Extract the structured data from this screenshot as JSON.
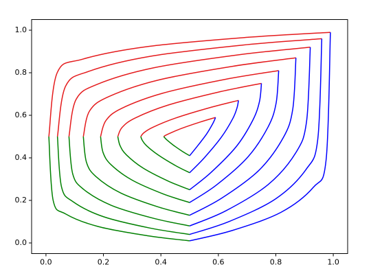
{
  "chart_data": {
    "type": "line",
    "xlim": [
      -0.05,
      1.05
    ],
    "ylim": [
      -0.05,
      1.05
    ],
    "xticks": [
      {
        "value": 0,
        "label": "0.0"
      },
      0.2,
      0.4,
      0.6,
      0.8,
      {
        "value": 1,
        "label": "1.0"
      }
    ],
    "yticks": [
      {
        "value": 0,
        "label": "0.0"
      },
      0.2,
      0.4,
      0.6,
      0.8,
      {
        "value": 1,
        "label": "1.0"
      }
    ],
    "grid": false,
    "series": [
      {
        "color": "#e41a1c",
        "x": [
          0.41,
          0.415,
          0.432,
          0.473,
          0.536,
          0.59
        ],
        "values": [
          0.5,
          0.505,
          0.516,
          0.539,
          0.568,
          0.59
        ]
      },
      {
        "color": "#008000",
        "x": [
          0.41,
          0.413,
          0.421,
          0.442,
          0.473,
          0.5
        ],
        "values": [
          0.5,
          0.495,
          0.484,
          0.461,
          0.432,
          0.41
        ]
      },
      {
        "color": "#0000ff",
        "x": [
          0.59,
          0.587,
          0.579,
          0.559,
          0.527,
          0.5
        ],
        "values": [
          0.59,
          0.579,
          0.557,
          0.512,
          0.455,
          0.41
        ]
      },
      {
        "color": "#e41a1c",
        "x": [
          0.33,
          0.34,
          0.371,
          0.449,
          0.568,
          0.67
        ],
        "values": [
          0.5,
          0.517,
          0.543,
          0.586,
          0.635,
          0.67
        ]
      },
      {
        "color": "#008000",
        "x": [
          0.33,
          0.335,
          0.35,
          0.39,
          0.449,
          0.5
        ],
        "values": [
          0.5,
          0.483,
          0.457,
          0.414,
          0.365,
          0.33
        ]
      },
      {
        "color": "#0000ff",
        "x": [
          0.67,
          0.665,
          0.65,
          0.611,
          0.551,
          0.5
        ],
        "values": [
          0.67,
          0.635,
          0.584,
          0.498,
          0.4,
          0.33
        ]
      },
      {
        "color": "#e41a1c",
        "x": [
          0.25,
          0.265,
          0.31,
          0.425,
          0.6,
          0.75
        ],
        "values": [
          0.5,
          0.543,
          0.587,
          0.648,
          0.709,
          0.75
        ]
      },
      {
        "color": "#008000",
        "x": [
          0.25,
          0.258,
          0.28,
          0.338,
          0.425,
          0.5
        ],
        "values": [
          0.5,
          0.457,
          0.414,
          0.352,
          0.291,
          0.25
        ]
      },
      {
        "color": "#0000ff",
        "x": [
          0.75,
          0.743,
          0.72,
          0.663,
          0.575,
          0.5
        ],
        "values": [
          0.75,
          0.664,
          0.577,
          0.454,
          0.332,
          0.25
        ]
      },
      {
        "color": "#e41a1c",
        "x": [
          0.19,
          0.209,
          0.264,
          0.407,
          0.624,
          0.81
        ],
        "values": [
          0.5,
          0.576,
          0.633,
          0.704,
          0.769,
          0.81
        ]
      },
      {
        "color": "#008000",
        "x": [
          0.19,
          0.199,
          0.227,
          0.299,
          0.407,
          0.5
        ],
        "values": [
          0.5,
          0.424,
          0.367,
          0.296,
          0.231,
          0.19
        ]
      },
      {
        "color": "#0000ff",
        "x": [
          0.81,
          0.801,
          0.773,
          0.702,
          0.593,
          0.5
        ],
        "values": [
          0.81,
          0.657,
          0.545,
          0.403,
          0.272,
          0.19
        ]
      },
      {
        "color": "#e41a1c",
        "x": [
          0.13,
          0.152,
          0.219,
          0.389,
          0.648,
          0.87
        ],
        "values": [
          0.5,
          0.621,
          0.688,
          0.765,
          0.83,
          0.87
        ]
      },
      {
        "color": "#008000",
        "x": [
          0.13,
          0.141,
          0.174,
          0.26,
          0.389,
          0.5
        ],
        "values": [
          0.5,
          0.379,
          0.312,
          0.235,
          0.17,
          0.13
        ]
      },
      {
        "color": "#0000ff",
        "x": [
          0.87,
          0.859,
          0.826,
          0.741,
          0.611,
          0.5
        ],
        "values": [
          0.87,
          0.629,
          0.495,
          0.341,
          0.21,
          0.13
        ]
      },
      {
        "color": "#e41a1c",
        "x": [
          0.08,
          0.105,
          0.181,
          0.374,
          0.668,
          0.92
        ],
        "values": [
          0.5,
          0.675,
          0.747,
          0.823,
          0.884,
          0.92
        ]
      },
      {
        "color": "#008000",
        "x": [
          0.08,
          0.093,
          0.13,
          0.227,
          0.374,
          0.5
        ],
        "values": [
          0.5,
          0.325,
          0.253,
          0.177,
          0.116,
          0.08
        ]
      },
      {
        "color": "#0000ff",
        "x": [
          0.92,
          0.907,
          0.87,
          0.773,
          0.626,
          0.5
        ],
        "values": [
          0.92,
          0.571,
          0.425,
          0.274,
          0.151,
          0.08
        ]
      },
      {
        "color": "#e41a1c",
        "x": [
          0.04,
          0.068,
          0.15,
          0.362,
          0.684,
          0.96
        ],
        "values": [
          0.5,
          0.736,
          0.807,
          0.877,
          0.93,
          0.96
        ]
      },
      {
        "color": "#008000",
        "x": [
          0.04,
          0.054,
          0.095,
          0.201,
          0.362,
          0.5
        ],
        "values": [
          0.5,
          0.264,
          0.193,
          0.123,
          0.07,
          0.04
        ]
      },
      {
        "color": "#0000ff",
        "x": [
          0.96,
          0.946,
          0.905,
          0.799,
          0.638,
          0.5
        ],
        "values": [
          0.96,
          0.487,
          0.345,
          0.207,
          0.101,
          0.04
        ]
      },
      {
        "color": "#e41a1c",
        "x": [
          0.01,
          0.039,
          0.128,
          0.353,
          0.696,
          0.99
        ],
        "values": [
          0.5,
          0.8,
          0.864,
          0.923,
          0.966,
          0.99
        ]
      },
      {
        "color": "#008000",
        "x": [
          0.01,
          0.025,
          0.069,
          0.182,
          0.353,
          0.5
        ],
        "values": [
          0.5,
          0.2,
          0.136,
          0.077,
          0.034,
          0.01
        ]
      },
      {
        "color": "#0000ff",
        "x": [
          0.99,
          0.975,
          0.931,
          0.818,
          0.647,
          0.5
        ],
        "values": [
          0.99,
          0.39,
          0.262,
          0.144,
          0.058,
          0.01
        ]
      }
    ]
  }
}
